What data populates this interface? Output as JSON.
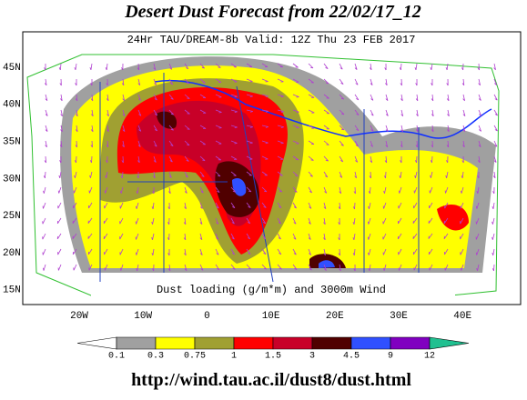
{
  "title": "Desert Dust Forecast from 22/02/17_12",
  "subtitle": "24Hr TAU/DREAM-8b Valid: 12Z Thu 23 FEB 2017",
  "caption": "Dust loading (g/m*m) and 3000m Wind",
  "lat_labels": [
    "45N",
    "40N",
    "35N",
    "30N",
    "25N",
    "20N",
    "15N"
  ],
  "lon_labels": [
    "20W",
    "10W",
    "0",
    "10E",
    "20E",
    "30E",
    "40E"
  ],
  "colorbar": {
    "labels": [
      "0.1",
      "0.3",
      "0.75",
      "1",
      "1.5",
      "3",
      "4.5",
      "9",
      "12"
    ],
    "colors": [
      "#ffffff",
      "#a0a0a0",
      "#ffff00",
      "#a0a032",
      "#ff0000",
      "#c80028",
      "#500000",
      "#3050ff",
      "#8000c0",
      "#20c090"
    ]
  },
  "url": "http://wind.tau.ac.il/dust8/dust.html"
}
